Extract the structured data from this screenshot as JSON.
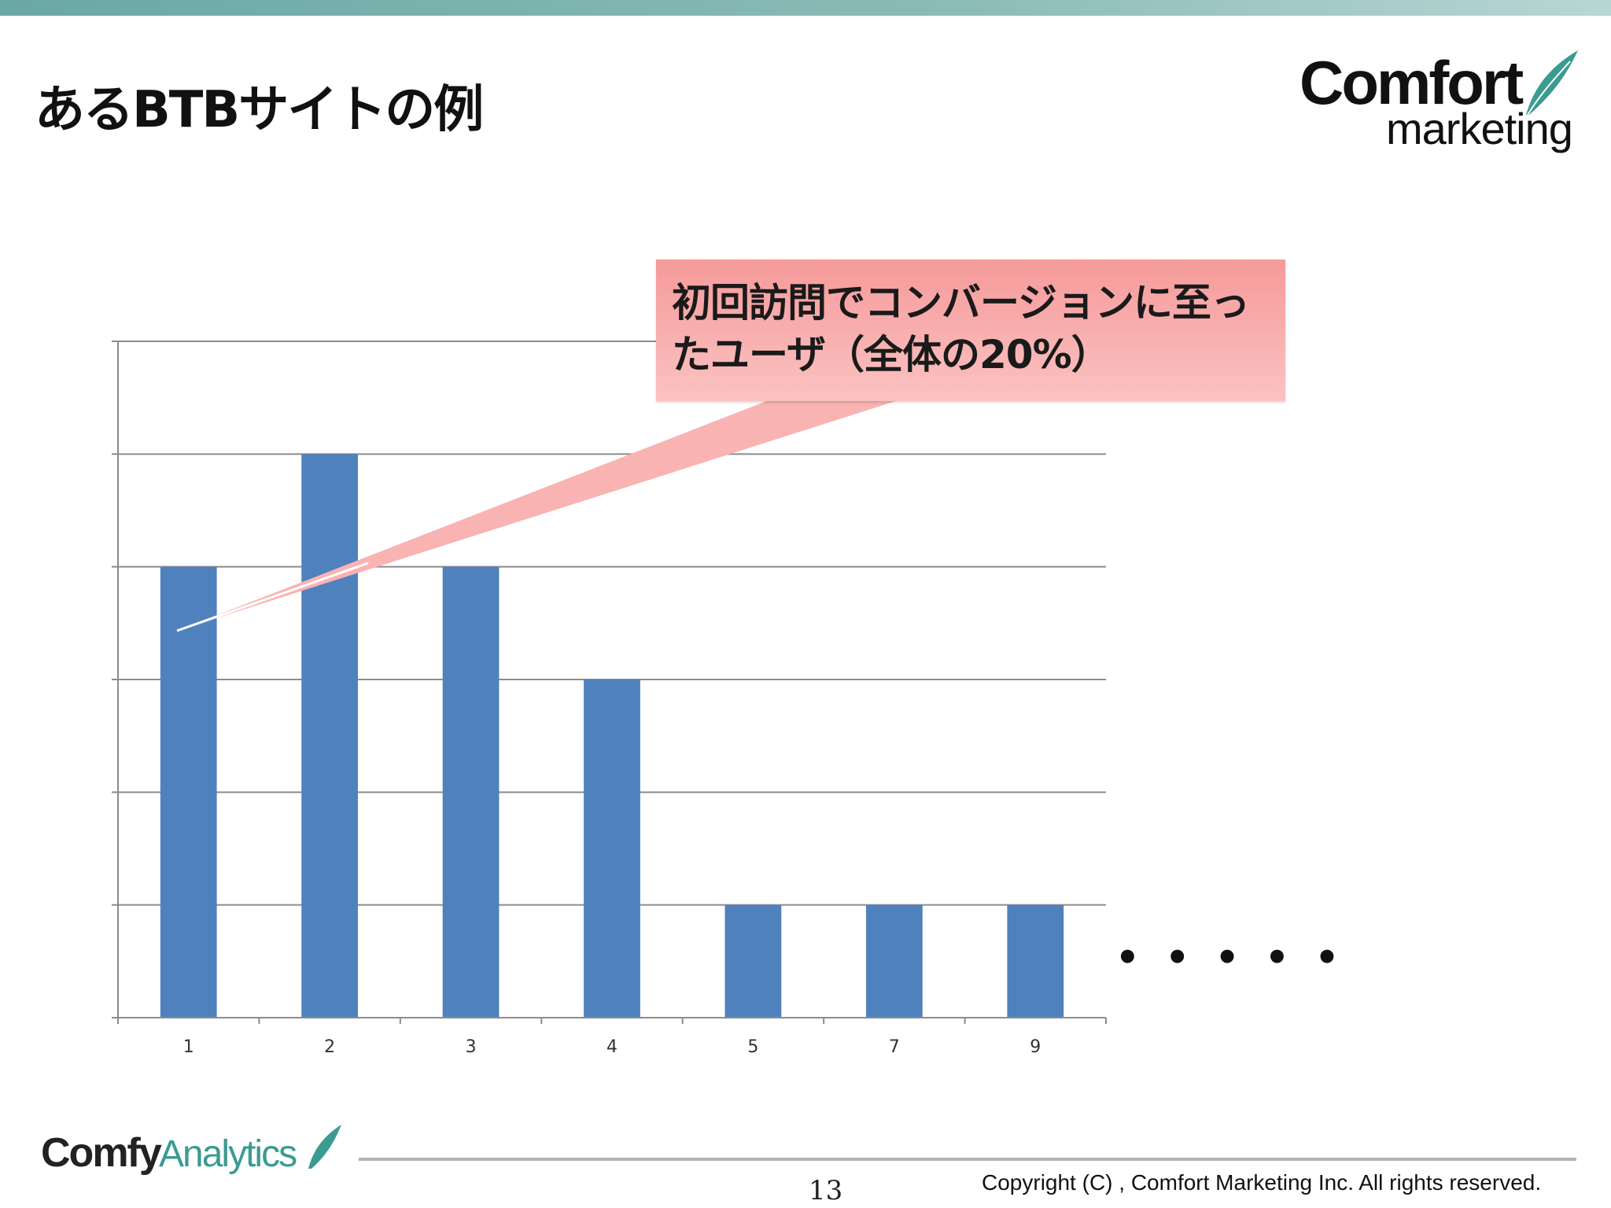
{
  "slide": {
    "title": "あるBTBサイトの例"
  },
  "brand": {
    "word1": "Comfort",
    "word2": "marketing",
    "leaf_color": "#3a9b91"
  },
  "callout": {
    "text": "初回訪問でコンバージョンに至ったユーザ（全体の20%）",
    "color": "#f8a9a9"
  },
  "ellipsis": "• • • • •",
  "chart_data": {
    "type": "bar",
    "categories": [
      "1",
      "2",
      "3",
      "4",
      "5",
      "7",
      "9"
    ],
    "values": [
      4,
      5,
      4,
      3,
      1,
      1,
      1
    ],
    "ylim": [
      0,
      6
    ],
    "grid": true,
    "bar_color": "#4f81bd",
    "title": "",
    "xlabel": "",
    "ylabel": ""
  },
  "footer": {
    "logo_part1": "Comfy",
    "logo_part2": "Analytics",
    "page_number": "13",
    "copyright": "Copyright (C) , Comfort Marketing Inc. All rights reserved."
  }
}
